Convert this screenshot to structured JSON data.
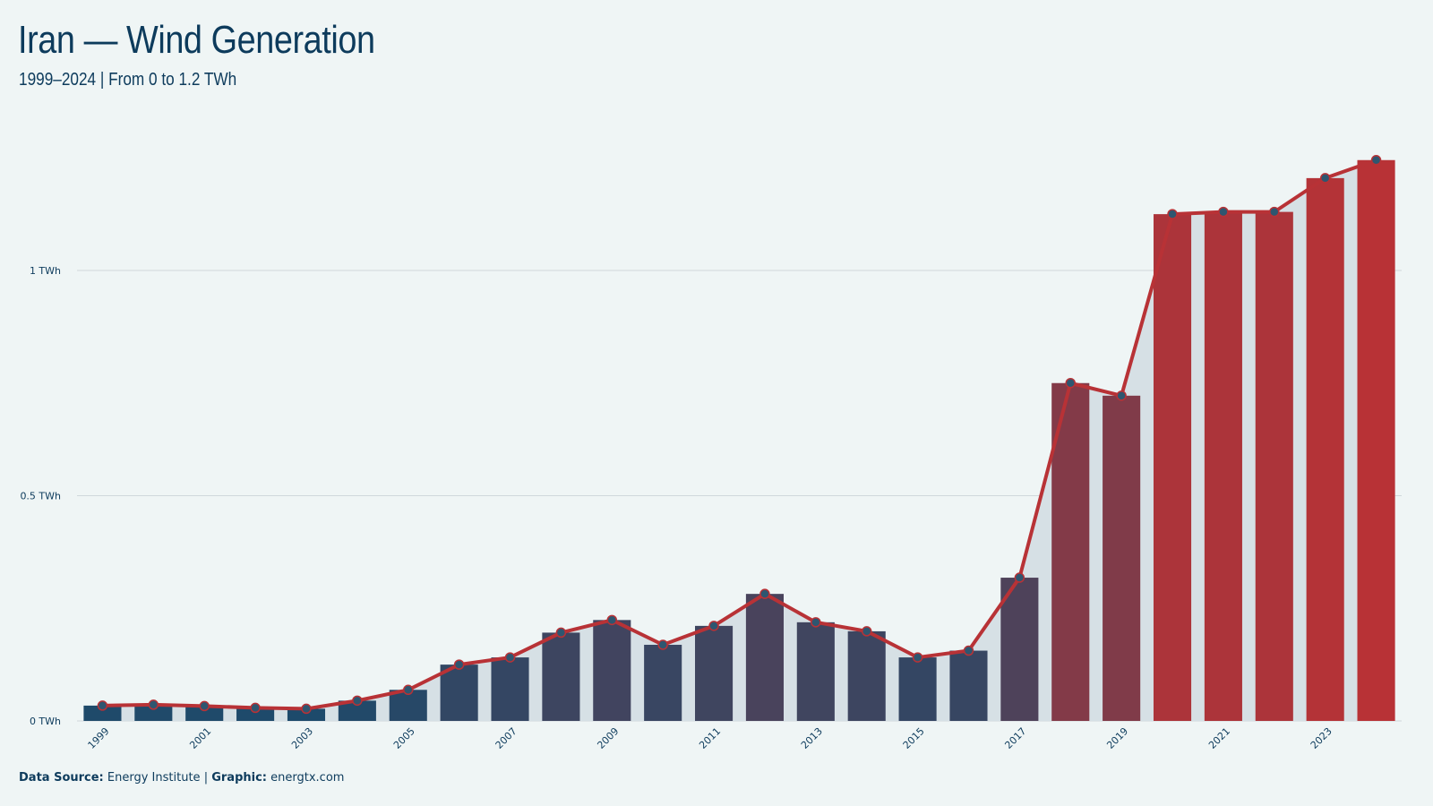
{
  "header": {
    "title": "Iran — Wind Generation",
    "subtitle": "1999–2024 | From 0 to 1.2 TWh"
  },
  "footer": {
    "source_label": "Data Source:",
    "source_value": "Energy Institute",
    "separator": "|",
    "graphic_label": "Graphic:",
    "graphic_value": "energtx.com"
  },
  "colors": {
    "background": "#eff5f5",
    "bar_low": "#1d4a6b",
    "bar_high": "#b83236",
    "line": "#b83236",
    "area": "#d6e0e5",
    "point_fill": "#2e5670",
    "text": "#0d3b5c",
    "grid": "#d0d8dc"
  },
  "chart_data": {
    "type": "bar",
    "categories": [
      "1999",
      "2000",
      "2001",
      "2002",
      "2003",
      "2004",
      "2005",
      "2006",
      "2007",
      "2008",
      "2009",
      "2010",
      "2011",
      "2012",
      "2013",
      "2014",
      "2015",
      "2016",
      "2017",
      "2018",
      "2019",
      "2020",
      "2021",
      "2022",
      "2023",
      "2024"
    ],
    "values": [
      0.034,
      0.036,
      0.033,
      0.029,
      0.027,
      0.045,
      0.069,
      0.125,
      0.141,
      0.196,
      0.224,
      0.169,
      0.211,
      0.282,
      0.219,
      0.199,
      0.141,
      0.156,
      0.318,
      0.75,
      0.722,
      1.125,
      1.13,
      1.13,
      1.205,
      1.245
    ],
    "x_tick_labels": [
      "1999",
      "2001",
      "2003",
      "2005",
      "2007",
      "2009",
      "2011",
      "2013",
      "2015",
      "2017",
      "2019",
      "2021",
      "2023"
    ],
    "y_ticks": [
      0,
      0.5,
      1
    ],
    "y_tick_labels": [
      "0 TWh",
      "0.5 TWh",
      "1 TWh"
    ],
    "ylim": [
      0,
      1.3
    ],
    "overlay": "line with markers and shaded area, same values",
    "grid": "horizontal",
    "xlabel": "",
    "ylabel": ""
  }
}
